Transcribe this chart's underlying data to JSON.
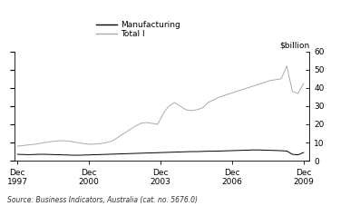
{
  "ylabel_right": "$billion",
  "legend_labels": [
    "Manufacturing",
    "Total I"
  ],
  "legend_colors": [
    "#000000",
    "#aaaaaa"
  ],
  "source_text": "Source: Business Indicators, Australia (cat. no. 5676.0)",
  "ylim": [
    0,
    60
  ],
  "yticks": [
    0,
    10,
    20,
    30,
    40,
    50,
    60
  ],
  "xtick_labels": [
    "Dec\n1997",
    "Dec\n2000",
    "Dec\n2003",
    "Dec\n2006",
    "Dec\n2009"
  ],
  "background_color": "#ffffff",
  "manufacturing": [
    3.5,
    3.4,
    3.3,
    3.4,
    3.5,
    3.5,
    3.4,
    3.3,
    3.2,
    3.1,
    3.0,
    3.0,
    3.1,
    3.2,
    3.3,
    3.4,
    3.5,
    3.6,
    3.7,
    3.8,
    3.9,
    4.0,
    4.1,
    4.2,
    4.3,
    4.4,
    4.5,
    4.6,
    4.7,
    4.8,
    4.9,
    5.0,
    5.0,
    5.1,
    5.2,
    5.2,
    5.3,
    5.4,
    5.5,
    5.6,
    5.7,
    5.8,
    5.9,
    5.9,
    5.8,
    5.7,
    5.6,
    5.5,
    5.3,
    3.5,
    3.2,
    4.5
  ],
  "total": [
    8.0,
    8.3,
    8.7,
    9.0,
    9.5,
    10.0,
    10.5,
    10.8,
    11.0,
    10.8,
    10.3,
    9.8,
    9.3,
    9.0,
    9.2,
    9.5,
    10.0,
    11.0,
    13.0,
    15.0,
    17.0,
    19.0,
    20.5,
    21.0,
    20.5,
    20.0,
    26.0,
    30.0,
    32.0,
    30.0,
    28.0,
    27.5,
    28.0,
    29.0,
    32.0,
    33.5,
    35.0,
    36.0,
    37.0,
    38.0,
    39.0,
    40.0,
    41.0,
    42.0,
    43.0,
    44.0,
    44.5,
    45.0,
    52.0,
    38.0,
    37.0,
    42.5
  ]
}
